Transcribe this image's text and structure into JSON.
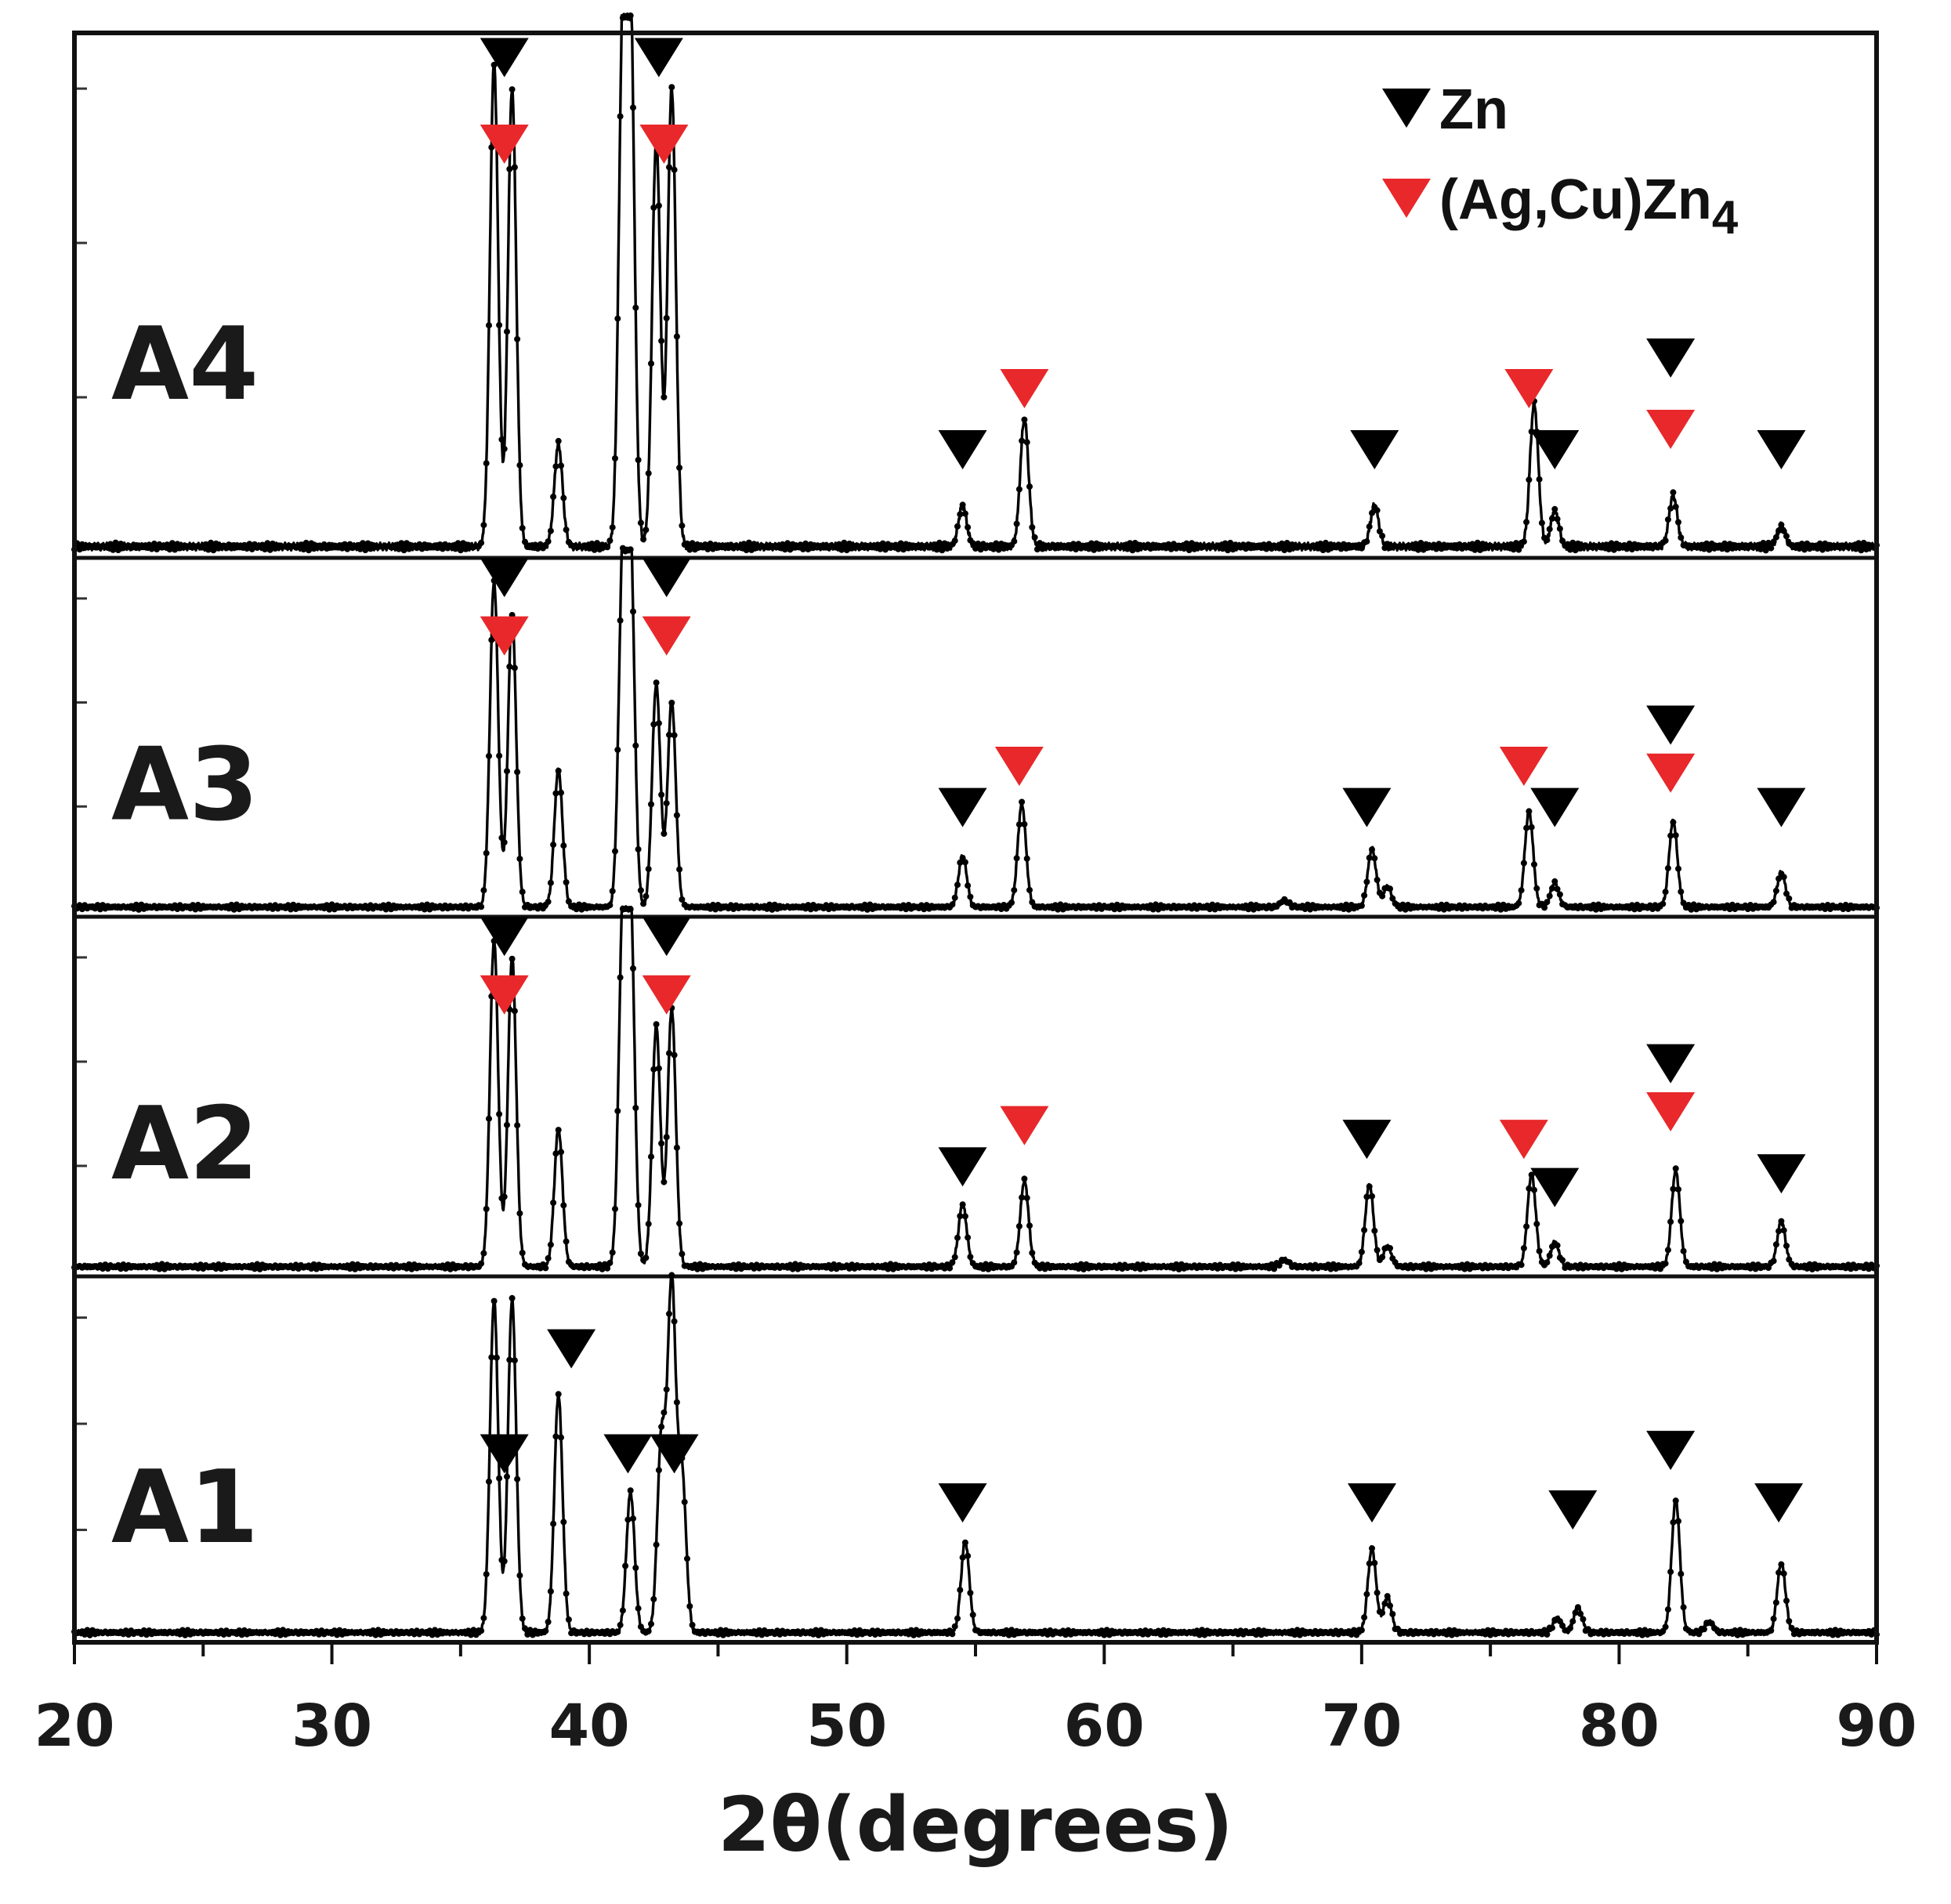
{
  "chart_data": {
    "type": "line",
    "title": "",
    "xlabel": "2θ(degrees)",
    "ylabel": "",
    "xlim": [
      20,
      90
    ],
    "xticks": [
      20,
      30,
      40,
      50,
      60,
      70,
      80,
      90
    ],
    "grid": false,
    "legend": {
      "placement": "top-right",
      "entries": [
        {
          "key": "zn",
          "label": "Zn",
          "color": "#000000",
          "marker": "down-triangle"
        },
        {
          "key": "agcu",
          "label": "(Ag,Cu)Zn",
          "subscript": "4",
          "color": "#e8282a",
          "marker": "down-triangle"
        }
      ]
    },
    "panels": [
      {
        "name": "A4",
        "peaks": [
          [
            36.3,
            0.95
          ],
          [
            37.0,
            0.9
          ],
          [
            38.8,
            0.2
          ],
          [
            41.3,
            0.97
          ],
          [
            41.6,
            1.0
          ],
          [
            42.6,
            0.8
          ],
          [
            43.2,
            0.9
          ],
          [
            54.5,
            0.08
          ],
          [
            56.9,
            0.25
          ],
          [
            70.5,
            0.08
          ],
          [
            76.7,
            0.28
          ],
          [
            77.5,
            0.07
          ],
          [
            82.1,
            0.1
          ],
          [
            86.3,
            0.04
          ]
        ],
        "markers": [
          {
            "x": 36.7,
            "y": 0.97,
            "kind": "zn"
          },
          {
            "x": 36.7,
            "y": 0.8,
            "kind": "agcu"
          },
          {
            "x": 42.7,
            "y": 0.97,
            "kind": "zn"
          },
          {
            "x": 42.9,
            "y": 0.8,
            "kind": "agcu"
          },
          {
            "x": 54.5,
            "y": 0.2,
            "kind": "zn"
          },
          {
            "x": 56.9,
            "y": 0.32,
            "kind": "agcu"
          },
          {
            "x": 70.5,
            "y": 0.2,
            "kind": "zn"
          },
          {
            "x": 76.5,
            "y": 0.32,
            "kind": "agcu"
          },
          {
            "x": 77.5,
            "y": 0.2,
            "kind": "zn"
          },
          {
            "x": 82.0,
            "y": 0.38,
            "kind": "zn"
          },
          {
            "x": 82.0,
            "y": 0.24,
            "kind": "agcu"
          },
          {
            "x": 86.3,
            "y": 0.2,
            "kind": "zn"
          }
        ]
      },
      {
        "name": "A3",
        "peaks": [
          [
            36.3,
            0.95
          ],
          [
            37.0,
            0.85
          ],
          [
            38.8,
            0.4
          ],
          [
            41.3,
            0.97
          ],
          [
            41.6,
            1.0
          ],
          [
            42.6,
            0.65
          ],
          [
            43.2,
            0.6
          ],
          [
            54.5,
            0.15
          ],
          [
            56.8,
            0.3
          ],
          [
            67.0,
            0.02
          ],
          [
            70.4,
            0.17
          ],
          [
            71.0,
            0.06
          ],
          [
            76.5,
            0.28
          ],
          [
            77.5,
            0.07
          ],
          [
            82.1,
            0.25
          ],
          [
            86.3,
            0.1
          ]
        ],
        "markers": [
          {
            "x": 36.7,
            "y": 0.97,
            "kind": "zn"
          },
          {
            "x": 36.7,
            "y": 0.8,
            "kind": "agcu"
          },
          {
            "x": 43.0,
            "y": 0.97,
            "kind": "zn"
          },
          {
            "x": 43.0,
            "y": 0.8,
            "kind": "agcu"
          },
          {
            "x": 54.5,
            "y": 0.3,
            "kind": "zn"
          },
          {
            "x": 56.7,
            "y": 0.42,
            "kind": "agcu"
          },
          {
            "x": 70.2,
            "y": 0.3,
            "kind": "zn"
          },
          {
            "x": 76.3,
            "y": 0.42,
            "kind": "agcu"
          },
          {
            "x": 77.5,
            "y": 0.3,
            "kind": "zn"
          },
          {
            "x": 82.0,
            "y": 0.54,
            "kind": "zn"
          },
          {
            "x": 82.0,
            "y": 0.4,
            "kind": "agcu"
          },
          {
            "x": 86.3,
            "y": 0.3,
            "kind": "zn"
          }
        ]
      },
      {
        "name": "A2",
        "peaks": [
          [
            36.3,
            0.95
          ],
          [
            37.0,
            0.9
          ],
          [
            38.8,
            0.4
          ],
          [
            41.3,
            0.97
          ],
          [
            41.6,
            1.0
          ],
          [
            42.6,
            0.7
          ],
          [
            43.2,
            0.75
          ],
          [
            54.5,
            0.18
          ],
          [
            56.9,
            0.25
          ],
          [
            67.0,
            0.02
          ],
          [
            70.3,
            0.24
          ],
          [
            71.0,
            0.06
          ],
          [
            76.6,
            0.27
          ],
          [
            77.5,
            0.07
          ],
          [
            82.2,
            0.28
          ],
          [
            86.3,
            0.13
          ]
        ],
        "markers": [
          {
            "x": 36.7,
            "y": 0.97,
            "kind": "zn"
          },
          {
            "x": 36.7,
            "y": 0.8,
            "kind": "agcu"
          },
          {
            "x": 43.0,
            "y": 0.97,
            "kind": "zn"
          },
          {
            "x": 43.0,
            "y": 0.8,
            "kind": "agcu"
          },
          {
            "x": 54.5,
            "y": 0.3,
            "kind": "zn"
          },
          {
            "x": 56.9,
            "y": 0.42,
            "kind": "agcu"
          },
          {
            "x": 70.2,
            "y": 0.38,
            "kind": "zn"
          },
          {
            "x": 76.3,
            "y": 0.38,
            "kind": "agcu"
          },
          {
            "x": 77.5,
            "y": 0.24,
            "kind": "zn"
          },
          {
            "x": 82.0,
            "y": 0.6,
            "kind": "zn"
          },
          {
            "x": 82.0,
            "y": 0.46,
            "kind": "agcu"
          },
          {
            "x": 86.3,
            "y": 0.28,
            "kind": "zn"
          }
        ]
      },
      {
        "name": "A1",
        "peaks": [
          [
            36.3,
            0.95
          ],
          [
            37.0,
            0.95
          ],
          [
            38.8,
            0.68
          ],
          [
            41.6,
            0.4
          ],
          [
            42.8,
            0.55
          ],
          [
            43.2,
            0.98
          ],
          [
            43.6,
            0.45
          ],
          [
            54.6,
            0.26
          ],
          [
            70.4,
            0.24
          ],
          [
            71.0,
            0.1
          ],
          [
            77.6,
            0.04
          ],
          [
            78.4,
            0.07
          ],
          [
            82.2,
            0.38
          ],
          [
            83.5,
            0.03
          ],
          [
            86.3,
            0.2
          ]
        ],
        "markers": [
          {
            "x": 39.3,
            "y": 0.82,
            "kind": "zn"
          },
          {
            "x": 36.7,
            "y": 0.52,
            "kind": "zn"
          },
          {
            "x": 41.5,
            "y": 0.52,
            "kind": "zn"
          },
          {
            "x": 43.3,
            "y": 0.52,
            "kind": "zn"
          },
          {
            "x": 54.5,
            "y": 0.38,
            "kind": "zn"
          },
          {
            "x": 70.4,
            "y": 0.38,
            "kind": "zn"
          },
          {
            "x": 78.2,
            "y": 0.36,
            "kind": "zn"
          },
          {
            "x": 82.0,
            "y": 0.53,
            "kind": "zn"
          },
          {
            "x": 86.2,
            "y": 0.38,
            "kind": "zn"
          }
        ]
      }
    ]
  }
}
